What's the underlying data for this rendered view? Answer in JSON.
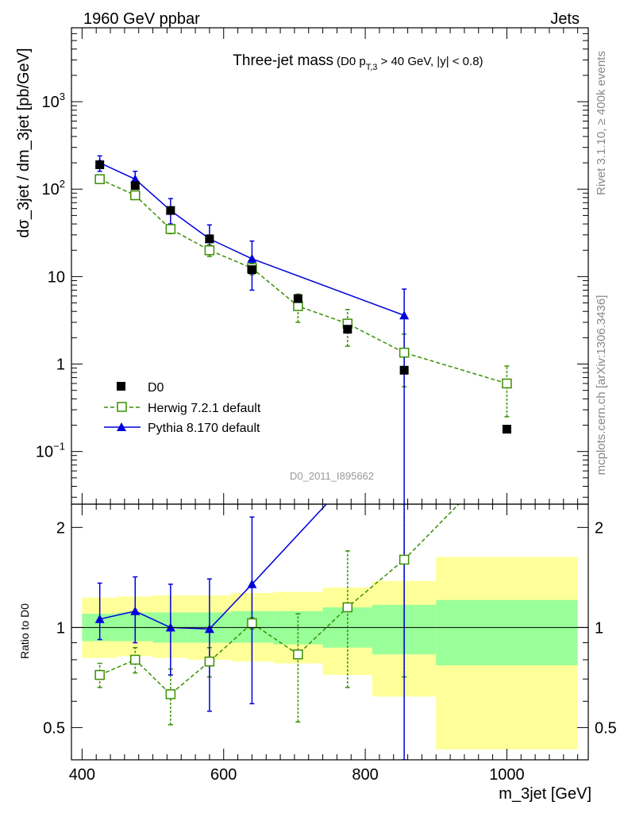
{
  "header": {
    "left": "1960 GeV ppbar",
    "right": "Jets",
    "side_top": "Rivet 3.1.10, ≥ 400k events",
    "side_bottom": "mcplots.cern.ch [arXiv:1306.3436]"
  },
  "chart_data": {
    "type": "line",
    "title": "Three-jet mass",
    "subtitle_prefix": "(D0 p",
    "subtitle_sub": "T,3",
    "subtitle_suffix": " > 40 GeV, |y| < 0.8)",
    "analysis_id": "D0_2011_I895662",
    "xlabel": "m_3jet [GeV]",
    "ylabel": "dσ_3jet / dm_3jet [pb/GeV]",
    "ratio_ylabel": "Ratio to D0",
    "xlim": [
      385,
      1115
    ],
    "ylim": [
      0.025,
      7000
    ],
    "ratio_ylim": [
      0.4,
      2.35
    ],
    "x_ticks": [
      {
        "value": 400,
        "label": "400"
      },
      {
        "value": 600,
        "label": "600"
      },
      {
        "value": 800,
        "label": "800"
      },
      {
        "value": 1000,
        "label": "1000"
      }
    ],
    "y_ticks": [
      {
        "value": 0.1,
        "base": "10",
        "exp": "−1"
      },
      {
        "value": 1,
        "base": "1",
        "exp": ""
      },
      {
        "value": 10,
        "base": "10",
        "exp": ""
      },
      {
        "value": 100,
        "base": "10",
        "exp": "2"
      },
      {
        "value": 1000,
        "base": "10",
        "exp": "3"
      }
    ],
    "ratio_ticks": [
      {
        "value": 0.5,
        "label": "0.5"
      },
      {
        "value": 1,
        "label": "1"
      },
      {
        "value": 2,
        "label": "2"
      }
    ],
    "legend": {
      "position": "bottom-left",
      "entries": [
        {
          "label": "D0",
          "series": "data"
        },
        {
          "label": "Herwig 7.2.1 default",
          "series": "herwig"
        },
        {
          "label": "Pythia 8.170 default",
          "series": "pythia"
        }
      ]
    },
    "colors": {
      "data": "#000000",
      "herwig": "#3a8f00",
      "pythia": "#0000dd",
      "band_inner": "#99ff99",
      "band_outer": "#ffff99"
    },
    "data_series": {
      "name": "D0",
      "x": [
        425,
        475,
        525,
        580,
        640,
        705,
        775,
        855,
        1000
      ],
      "y": [
        190,
        110,
        57,
        27,
        12,
        5.6,
        2.5,
        0.85,
        0.18
      ]
    },
    "herwig": {
      "name": "Herwig 7.2.1 default",
      "x": [
        425,
        475,
        525,
        580,
        640,
        705,
        775,
        855,
        1000
      ],
      "y": [
        130,
        85,
        35,
        20,
        12.5,
        4.6,
        2.9,
        1.35,
        0.6
      ],
      "yerr_low": [
        122,
        77,
        31,
        17,
        10.5,
        3.0,
        1.6,
        0.55,
        0.25
      ],
      "yerr_high": [
        138,
        93,
        39,
        23,
        14.5,
        6.3,
        4.2,
        2.2,
        0.95
      ]
    },
    "pythia": {
      "name": "Pythia 8.170 default",
      "x": [
        425,
        475,
        525,
        580,
        640,
        855
      ],
      "y": [
        200,
        130,
        57,
        27,
        16,
        3.6
      ],
      "yerr_low": [
        160,
        100,
        40,
        18,
        7,
        0.01
      ],
      "yerr_high": [
        240,
        160,
        78,
        39,
        25.5,
        7.2
      ]
    },
    "ratio": {
      "herwig": {
        "x": [
          425,
          475,
          525,
          580,
          640,
          705,
          775,
          855
        ],
        "y": [
          0.72,
          0.8,
          0.63,
          0.79,
          1.03,
          0.83,
          1.15,
          1.6
        ],
        "err_low": [
          0.66,
          0.73,
          0.51,
          0.71,
          0.99,
          0.52,
          0.66,
          0.71
        ],
        "err_high": [
          0.78,
          0.87,
          0.75,
          0.87,
          1.07,
          1.1,
          1.7,
          2.35
        ]
      },
      "herwig_extra_x": [
        1000
      ],
      "herwig_extra_y": [
        3.3
      ],
      "pythia": {
        "x": [
          425,
          475,
          525,
          580,
          640,
          855
        ],
        "y": [
          1.06,
          1.12,
          1.0,
          0.99,
          1.35,
          4.2
        ],
        "err_low": [
          0.92,
          0.9,
          0.72,
          0.56,
          0.59,
          0.4
        ],
        "err_high": [
          1.36,
          1.42,
          1.35,
          1.4,
          2.15,
          8.5
        ]
      },
      "bands": [
        {
          "x0": 400,
          "x1": 450,
          "inner_low": 0.91,
          "inner_high": 1.1,
          "outer_low": 0.81,
          "outer_high": 1.23
        },
        {
          "x0": 450,
          "x1": 500,
          "inner_low": 0.91,
          "inner_high": 1.11,
          "outer_low": 0.82,
          "outer_high": 1.24
        },
        {
          "x0": 500,
          "x1": 550,
          "inner_low": 0.9,
          "inner_high": 1.11,
          "outer_low": 0.81,
          "outer_high": 1.25
        },
        {
          "x0": 550,
          "x1": 610,
          "inner_low": 0.9,
          "inner_high": 1.11,
          "outer_low": 0.8,
          "outer_high": 1.25
        },
        {
          "x0": 610,
          "x1": 670,
          "inner_low": 0.9,
          "inner_high": 1.12,
          "outer_low": 0.79,
          "outer_high": 1.27
        },
        {
          "x0": 670,
          "x1": 740,
          "inner_low": 0.89,
          "inner_high": 1.12,
          "outer_low": 0.78,
          "outer_high": 1.28
        },
        {
          "x0": 740,
          "x1": 810,
          "inner_low": 0.87,
          "inner_high": 1.15,
          "outer_low": 0.72,
          "outer_high": 1.32
        },
        {
          "x0": 810,
          "x1": 900,
          "inner_low": 0.83,
          "inner_high": 1.17,
          "outer_low": 0.62,
          "outer_high": 1.38
        },
        {
          "x0": 900,
          "x1": 1100,
          "inner_low": 0.77,
          "inner_high": 1.21,
          "outer_low": 0.43,
          "outer_high": 1.63
        }
      ]
    }
  }
}
